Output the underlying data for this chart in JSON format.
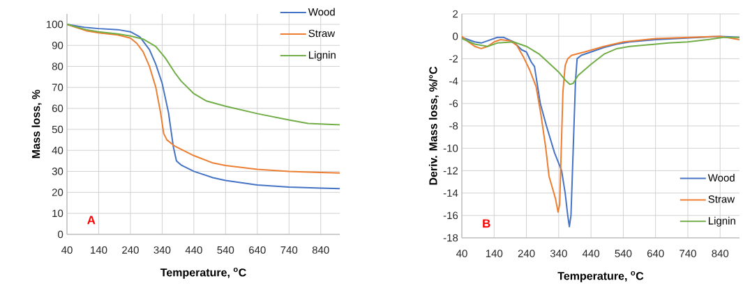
{
  "chart_data": [
    {
      "type": "line",
      "xlabel": "Temperature, $^{o}$C",
      "ylabel": "Mass loss, %",
      "xlim": [
        40,
        900
      ],
      "xticks": [
        40,
        140,
        240,
        340,
        440,
        540,
        640,
        740,
        840
      ],
      "ylim": [
        0,
        105
      ],
      "yticks": [
        0,
        10,
        20,
        30,
        40,
        50,
        60,
        70,
        80,
        90,
        100
      ],
      "grid": true,
      "legend": "top right",
      "annotations": [
        "A"
      ],
      "series": [
        {
          "name": "Wood",
          "color": "#4472c4",
          "x": [
            40,
            100,
            140,
            200,
            240,
            270,
            300,
            320,
            340,
            360,
            375,
            385,
            400,
            440,
            500,
            540,
            640,
            740,
            840,
            900
          ],
          "values": [
            100,
            98.5,
            98,
            97.5,
            96.5,
            94,
            88,
            81,
            72,
            58,
            42,
            35,
            33,
            30,
            27,
            25.7,
            23.5,
            22.5,
            22,
            21.8
          ]
        },
        {
          "name": "Straw",
          "color": "#ed7d31",
          "x": [
            40,
            100,
            140,
            200,
            240,
            260,
            280,
            300,
            320,
            335,
            345,
            355,
            380,
            440,
            500,
            540,
            640,
            740,
            840,
            900
          ],
          "values": [
            100,
            97,
            96,
            95,
            93.5,
            91,
            87,
            80,
            70,
            58,
            48,
            45,
            42,
            37.5,
            34,
            32.8,
            31,
            30,
            29.5,
            29.2
          ]
        },
        {
          "name": "Lignin",
          "color": "#70ad47",
          "x": [
            40,
            100,
            140,
            200,
            240,
            280,
            320,
            350,
            380,
            400,
            440,
            480,
            540,
            640,
            740,
            800,
            900
          ],
          "values": [
            100,
            97.5,
            96.5,
            95.5,
            94.5,
            93,
            89.5,
            84,
            77,
            73,
            67,
            63.5,
            61,
            57.5,
            54.5,
            52.8,
            52.2
          ]
        }
      ]
    },
    {
      "type": "line",
      "xlabel": "Temperature, $^{o}$C",
      "ylabel": "Deriv. Mass loss, %/°C",
      "xlim": [
        40,
        900
      ],
      "xticks": [
        40,
        140,
        240,
        340,
        440,
        540,
        640,
        740,
        840
      ],
      "ylim": [
        -18,
        2
      ],
      "yticks": [
        -18,
        -16,
        -14,
        -12,
        -10,
        -8,
        -6,
        -4,
        -2,
        0,
        2
      ],
      "grid": true,
      "legend": "bottom right",
      "annotations": [
        "B"
      ],
      "series": [
        {
          "name": "Wood",
          "color": "#4472c4",
          "x": [
            40,
            60,
            80,
            100,
            120,
            150,
            170,
            200,
            225,
            240,
            255,
            265,
            283,
            302,
            327,
            349,
            360,
            368,
            373,
            378,
            385,
            392,
            397,
            410,
            440,
            480,
            520,
            560,
            640,
            740,
            840,
            900
          ],
          "values": [
            -0.1,
            -0.3,
            -0.5,
            -0.6,
            -0.4,
            -0.1,
            -0.1,
            -0.5,
            -1.2,
            -1.4,
            -2.3,
            -2.7,
            -6,
            -8,
            -10.4,
            -12,
            -14,
            -16,
            -17,
            -16,
            -10,
            -4,
            -2,
            -1.7,
            -1.4,
            -1,
            -0.7,
            -0.5,
            -0.3,
            null,
            0,
            -0.1
          ]
        },
        {
          "name": "Straw",
          "color": "#ed7d31",
          "x": [
            40,
            60,
            80,
            100,
            120,
            140,
            160,
            190,
            210,
            230,
            250,
            270,
            285,
            300,
            310,
            320,
            330,
            338,
            343,
            348,
            353,
            360,
            368,
            380,
            420,
            480,
            540,
            640,
            740,
            840,
            900
          ],
          "values": [
            0,
            -0.5,
            -0.9,
            -1.1,
            -0.9,
            -0.5,
            -0.3,
            -0.4,
            -0.8,
            -1.8,
            -3,
            -4.5,
            -7,
            -10,
            -12.5,
            -13.5,
            -14.5,
            -15.7,
            -15,
            -10,
            -5,
            -2.6,
            -2,
            -1.7,
            -1.4,
            -0.9,
            -0.5,
            -0.2,
            -0.1,
            0,
            -0.3
          ]
        },
        {
          "name": "Lignin",
          "color": "#70ad47",
          "x": [
            40,
            80,
            120,
            150,
            200,
            240,
            280,
            310,
            340,
            360,
            375,
            385,
            400,
            440,
            480,
            520,
            560,
            640,
            680,
            740,
            800,
            850,
            900
          ],
          "values": [
            -0.2,
            -0.7,
            -0.9,
            -0.6,
            -0.5,
            -0.9,
            -1.6,
            -2.4,
            -3.2,
            -3.9,
            -4.3,
            -4.2,
            -3.5,
            -2.5,
            -1.6,
            -1.1,
            -0.9,
            -0.7,
            -0.6,
            -0.5,
            -0.3,
            -0.1,
            -0.1
          ]
        }
      ]
    }
  ]
}
